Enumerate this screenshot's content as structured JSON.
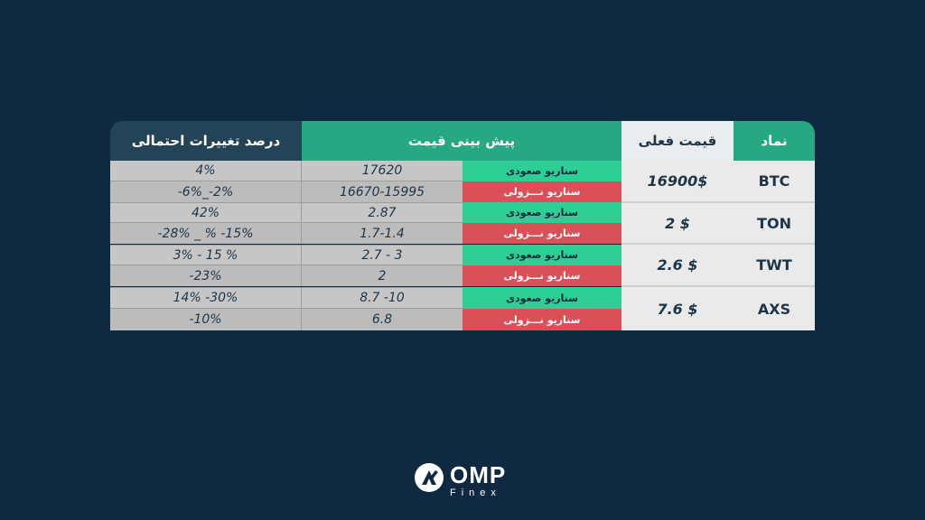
{
  "headers": {
    "symbol": "نماد",
    "current_price": "قیمت فعلی",
    "forecast": "پیش بینی قیمت",
    "change": "درصد تغییرات احتمالی"
  },
  "scenarios": {
    "up": "سناریو صعودی",
    "down": "سناریو نـــزولی"
  },
  "rows": [
    {
      "symbol": "BTC",
      "price": "16900$",
      "up_forecast": "17620",
      "down_forecast": "16670-15995",
      "up_change": "4%",
      "down_change": "-6%_-2%"
    },
    {
      "symbol": "TON",
      "price": "2 $",
      "up_forecast": "2.87",
      "down_forecast": "1.7-1.4",
      "up_change": "42%",
      "down_change": "-28% _ % -15%"
    },
    {
      "symbol": "TWT",
      "price": "2.6 $",
      "up_forecast": "2.7 - 3",
      "down_forecast": "2",
      "up_change": "3% - 15 %",
      "down_change": "-23%"
    },
    {
      "symbol": "AXS",
      "price": "7.6 $",
      "up_forecast": "8.7 -10",
      "down_forecast": "6.8",
      "up_change": "14% -30%",
      "down_change": "-10%"
    }
  ],
  "logo": {
    "main": "OMP",
    "sub": "Finex"
  },
  "colors": {
    "background": "#0f2a40",
    "header_dark": "#234457",
    "header_green": "#26a882",
    "up": "#2ecf96",
    "down": "#d95058"
  }
}
